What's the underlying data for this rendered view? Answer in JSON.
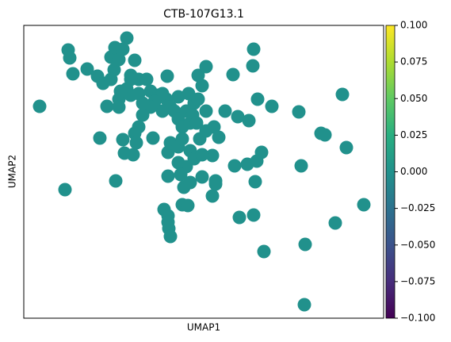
{
  "chart_data": {
    "type": "scatter",
    "title": "CTB-107G13.1",
    "x_label": "UMAP1",
    "y_label": "UMAP2",
    "color": "#21918c",
    "xlim": [
      0,
      454
    ],
    "ylim": [
      0,
      369
    ],
    "x": [
      20,
      56,
      58,
      62,
      80,
      93,
      100,
      110,
      115,
      114,
      120,
      130,
      125,
      140,
      135,
      145,
      155,
      130,
      120,
      105,
      120,
      135,
      145,
      160,
      170,
      180,
      175,
      165,
      185,
      190,
      195,
      200,
      210,
      205,
      215,
      220,
      225,
      220,
      230,
      181,
      195,
      208,
      213,
      150,
      145,
      140,
      125,
      127,
      138,
      142,
      163,
      96,
      116,
      52,
      182,
      185,
      195,
      200,
      210,
      215,
      205,
      195,
      182,
      198,
      202,
      210,
      225,
      238,
      242,
      242,
      200,
      207,
      177,
      182,
      183,
      182,
      185,
      222,
      230,
      240,
      246,
      238,
      254,
      270,
      284,
      266,
      282,
      294,
      300,
      292,
      272,
      290,
      303,
      264,
      290,
      289,
      295,
      313,
      347,
      350,
      375,
      380,
      407,
      402,
      429,
      393,
      355,
      354,
      225,
      218,
      230,
      175,
      160,
      150,
      135,
      110,
      122
    ],
    "y": [
      267,
      338,
      328,
      308,
      314,
      305,
      296,
      329,
      341,
      313,
      326,
      353,
      339,
      325,
      306,
      301,
      301,
      289,
      276,
      267,
      266,
      281,
      283,
      286,
      281,
      276,
      283,
      273,
      266,
      261,
      251,
      241,
      246,
      261,
      271,
      276,
      293,
      306,
      317,
      305,
      279,
      283,
      256,
      256,
      241,
      233,
      225,
      208,
      206,
      221,
      227,
      227,
      173,
      162,
      209,
      221,
      216,
      226,
      211,
      201,
      191,
      196,
      179,
      181,
      165,
      171,
      178,
      154,
      173,
      169,
      143,
      142,
      137,
      129,
      113,
      121,
      103,
      226,
      236,
      241,
      228,
      205,
      261,
      254,
      249,
      192,
      194,
      198,
      209,
      172,
      127,
      130,
      84,
      307,
      339,
      318,
      276,
      267,
      260,
      192,
      233,
      231,
      215,
      282,
      143,
      120,
      93,
      17,
      206,
      246,
      261,
      261,
      266,
      271,
      301,
      301,
      286
    ],
    "colorbar": {
      "colormap": "viridis",
      "lim": [
        -0.1,
        0.1
      ],
      "ticks": [
        {
          "value": -0.1,
          "label": "−0.100"
        },
        {
          "value": -0.075,
          "label": "−0.075"
        },
        {
          "value": -0.05,
          "label": "−0.050"
        },
        {
          "value": -0.025,
          "label": "−0.025"
        },
        {
          "value": 0,
          "label": "0.000"
        },
        {
          "value": 0.025,
          "label": "0.025"
        },
        {
          "value": 0.05,
          "label": "0.050"
        },
        {
          "value": 0.075,
          "label": "0.075"
        },
        {
          "value": 0.1,
          "label": "0.100"
        }
      ]
    }
  }
}
